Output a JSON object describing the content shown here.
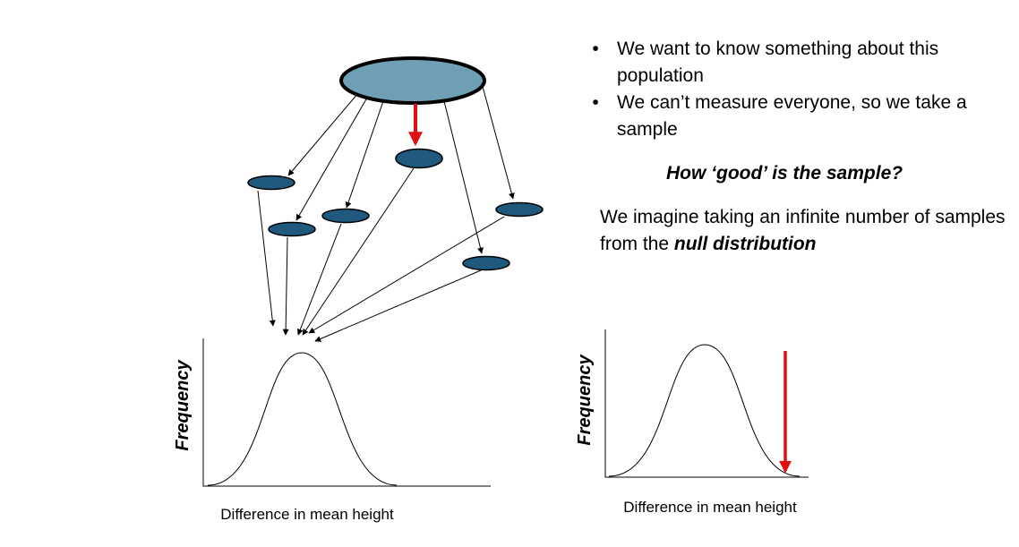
{
  "bullets": [
    "We want to know something about this population",
    "We can’t measure everyone, so we take a sample"
  ],
  "question": "How ‘good’ is the sample?",
  "imagine": {
    "text_before": "We imagine taking an infinite number of samples from the ",
    "emphasis": "null distribution"
  },
  "left_plot": {
    "ylabel": "Frequency",
    "xlabel": "Difference in mean height"
  },
  "right_plot": {
    "ylabel": "Frequency",
    "xlabel": "Difference in mean height"
  },
  "colors": {
    "population_fill": "#6f9fb5",
    "sample_fill": "#1f5a7e",
    "highlight_arrow": "#e01010",
    "arrow": "#000000"
  }
}
